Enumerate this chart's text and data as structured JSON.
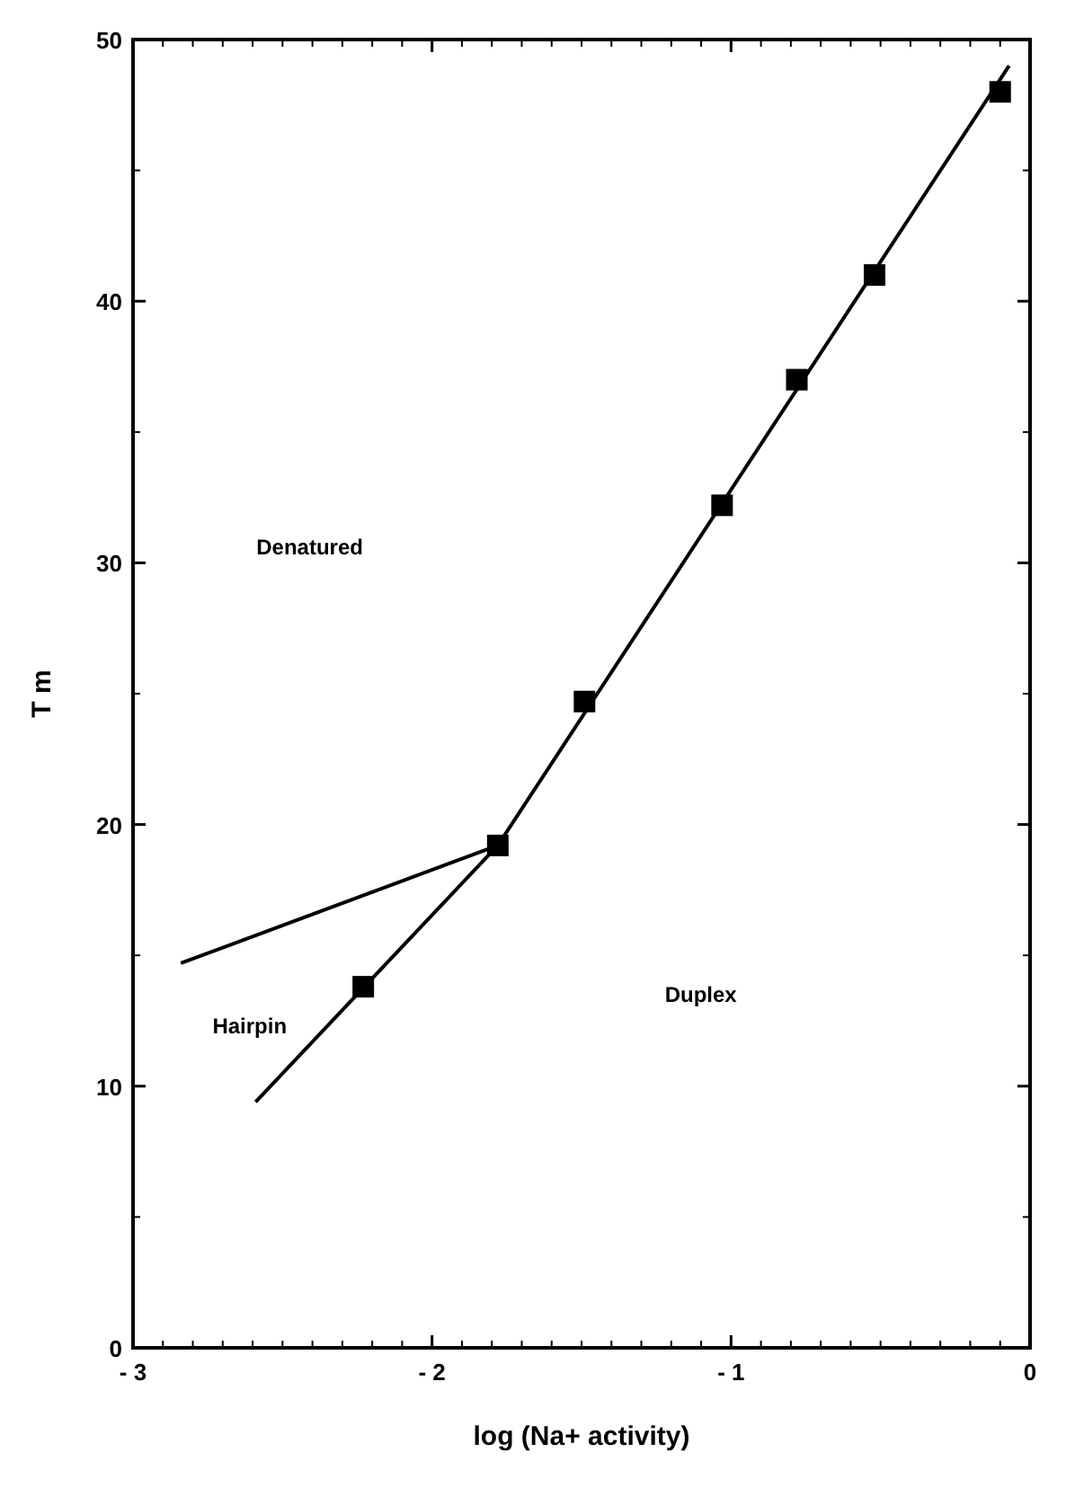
{
  "chart_data": {
    "type": "scatter",
    "xlabel": "log (Na+ activity)",
    "ylabel": "T m",
    "xlim": [
      -3,
      0
    ],
    "xticks": [
      {
        "value": -3,
        "label": "- 3"
      },
      {
        "value": -2,
        "label": "- 2"
      },
      {
        "value": -1,
        "label": "- 1"
      },
      0
    ],
    "ylim": [
      0,
      50
    ],
    "yticks": [
      0,
      10,
      20,
      30,
      40,
      50
    ],
    "grid": false,
    "marker": "square",
    "series": [
      {
        "color": "#000000",
        "x": [
          -2.23,
          -1.78,
          -1.49,
          -1.03,
          -0.78,
          -0.52,
          -0.1
        ],
        "values": [
          13.8,
          19.2,
          24.7,
          32.2,
          37,
          41,
          48
        ]
      },
      {
        "type": "line",
        "color": "#000000",
        "marker": "none",
        "line_style": "solid",
        "x": [
          -2.59,
          -1.78,
          -0.07
        ],
        "values": [
          9.4,
          19.2,
          49
        ]
      },
      {
        "type": "line",
        "color": "#000000",
        "marker": "none",
        "line_style": "solid",
        "x": [
          -2.84,
          -1.78
        ],
        "values": [
          14.7,
          19.2
        ]
      }
    ],
    "annotations": [
      "Denatured",
      "Hairpin",
      "Duplex"
    ]
  }
}
